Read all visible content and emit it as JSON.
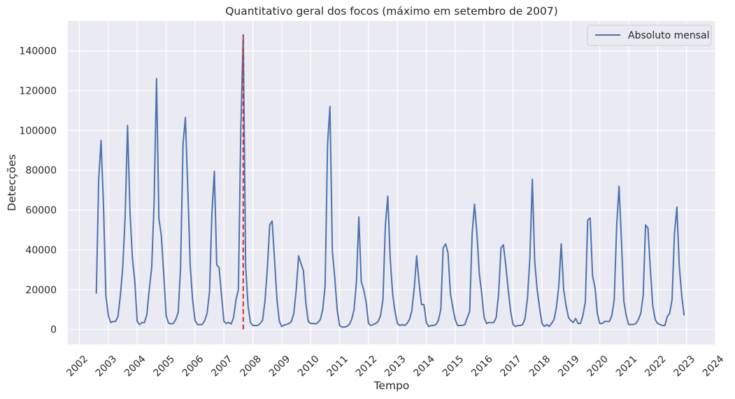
{
  "chart_data": {
    "type": "line",
    "title": "Quantitativo geral dos focos (máximo em setembro de 2007)",
    "xlabel": "Tempo",
    "ylabel": "Detecções",
    "xlim": [
      2001.6,
      2024.0
    ],
    "ylim": [
      -7500,
      155000
    ],
    "x_ticks": [
      "2002",
      "2003",
      "2004",
      "2005",
      "2006",
      "2007",
      "2008",
      "2009",
      "2010",
      "2011",
      "2012",
      "2013",
      "2014",
      "2015",
      "2016",
      "2017",
      "2018",
      "2019",
      "2020",
      "2021",
      "2022",
      "2023",
      "2024"
    ],
    "y_ticks": [
      0,
      20000,
      40000,
      60000,
      80000,
      100000,
      120000,
      140000
    ],
    "grid": true,
    "legend_position": "top-right",
    "colors": {
      "line": "#4c72b0",
      "marker": "#d62728",
      "background": "#eaeaf2",
      "grid": "#ffffff"
    },
    "series": [
      {
        "name": "Absoluto mensal",
        "points": [
          [
            "2002-08",
            18000
          ],
          [
            "2002-09",
            75000
          ],
          [
            "2002-10",
            95000
          ],
          [
            "2002-11",
            62000
          ],
          [
            "2002-12",
            17000
          ],
          [
            "2003-01",
            7000
          ],
          [
            "2003-02",
            3500
          ],
          [
            "2003-03",
            4000
          ],
          [
            "2003-04",
            4000
          ],
          [
            "2003-05",
            6500
          ],
          [
            "2003-06",
            17000
          ],
          [
            "2003-07",
            31000
          ],
          [
            "2003-08",
            57000
          ],
          [
            "2003-09",
            102500
          ],
          [
            "2003-10",
            59000
          ],
          [
            "2003-11",
            36000
          ],
          [
            "2003-12",
            24000
          ],
          [
            "2004-01",
            4000
          ],
          [
            "2004-02",
            2500
          ],
          [
            "2004-03",
            3500
          ],
          [
            "2004-04",
            3500
          ],
          [
            "2004-05",
            7500
          ],
          [
            "2004-06",
            20000
          ],
          [
            "2004-07",
            31000
          ],
          [
            "2004-08",
            63000
          ],
          [
            "2004-09",
            126000
          ],
          [
            "2004-10",
            56000
          ],
          [
            "2004-11",
            47000
          ],
          [
            "2004-12",
            28000
          ],
          [
            "2005-01",
            7000
          ],
          [
            "2005-02",
            3200
          ],
          [
            "2005-03",
            2800
          ],
          [
            "2005-04",
            3000
          ],
          [
            "2005-05",
            5000
          ],
          [
            "2005-06",
            8500
          ],
          [
            "2005-07",
            31000
          ],
          [
            "2005-08",
            93000
          ],
          [
            "2005-09",
            106500
          ],
          [
            "2005-10",
            70000
          ],
          [
            "2005-11",
            32000
          ],
          [
            "2005-12",
            15000
          ],
          [
            "2006-01",
            4500
          ],
          [
            "2006-02",
            2500
          ],
          [
            "2006-03",
            2500
          ],
          [
            "2006-04",
            2500
          ],
          [
            "2006-05",
            4500
          ],
          [
            "2006-06",
            8000
          ],
          [
            "2006-07",
            19000
          ],
          [
            "2006-08",
            58000
          ],
          [
            "2006-09",
            79500
          ],
          [
            "2006-10",
            32500
          ],
          [
            "2006-11",
            31000
          ],
          [
            "2006-12",
            17000
          ],
          [
            "2007-01",
            4000
          ],
          [
            "2007-02",
            3000
          ],
          [
            "2007-03",
            3500
          ],
          [
            "2007-04",
            2800
          ],
          [
            "2007-05",
            6000
          ],
          [
            "2007-06",
            15000
          ],
          [
            "2007-07",
            20000
          ],
          [
            "2007-08",
            100000
          ],
          [
            "2007-09",
            148000
          ],
          [
            "2007-10",
            32000
          ],
          [
            "2007-11",
            12000
          ],
          [
            "2007-12",
            3500
          ],
          [
            "2008-01",
            2000
          ],
          [
            "2008-02",
            2000
          ],
          [
            "2008-03",
            2000
          ],
          [
            "2008-04",
            3000
          ],
          [
            "2008-05",
            4500
          ],
          [
            "2008-06",
            14000
          ],
          [
            "2008-07",
            30000
          ],
          [
            "2008-08",
            52500
          ],
          [
            "2008-09",
            54500
          ],
          [
            "2008-10",
            35000
          ],
          [
            "2008-11",
            15000
          ],
          [
            "2008-12",
            4000
          ],
          [
            "2009-01",
            1500
          ],
          [
            "2009-02",
            2200
          ],
          [
            "2009-03",
            2500
          ],
          [
            "2009-04",
            3000
          ],
          [
            "2009-05",
            4000
          ],
          [
            "2009-06",
            8000
          ],
          [
            "2009-07",
            20000
          ],
          [
            "2009-08",
            37000
          ],
          [
            "2009-09",
            33000
          ],
          [
            "2009-10",
            29500
          ],
          [
            "2009-11",
            13000
          ],
          [
            "2009-12",
            4000
          ],
          [
            "2010-01",
            3000
          ],
          [
            "2010-02",
            3000
          ],
          [
            "2010-03",
            2800
          ],
          [
            "2010-04",
            3500
          ],
          [
            "2010-05",
            5000
          ],
          [
            "2010-06",
            10000
          ],
          [
            "2010-07",
            22000
          ],
          [
            "2010-08",
            93000
          ],
          [
            "2010-09",
            112000
          ],
          [
            "2010-10",
            39000
          ],
          [
            "2010-11",
            26000
          ],
          [
            "2010-12",
            10000
          ],
          [
            "2011-01",
            2000
          ],
          [
            "2011-02",
            1200
          ],
          [
            "2011-03",
            1200
          ],
          [
            "2011-04",
            1500
          ],
          [
            "2011-05",
            2500
          ],
          [
            "2011-06",
            5000
          ],
          [
            "2011-07",
            10000
          ],
          [
            "2011-08",
            24000
          ],
          [
            "2011-09",
            56500
          ],
          [
            "2011-10",
            24000
          ],
          [
            "2011-11",
            20000
          ],
          [
            "2011-12",
            14000
          ],
          [
            "2012-01",
            3000
          ],
          [
            "2012-02",
            2000
          ],
          [
            "2012-03",
            2500
          ],
          [
            "2012-04",
            3000
          ],
          [
            "2012-05",
            4000
          ],
          [
            "2012-06",
            7000
          ],
          [
            "2012-07",
            15000
          ],
          [
            "2012-08",
            52000
          ],
          [
            "2012-09",
            67000
          ],
          [
            "2012-10",
            36000
          ],
          [
            "2012-11",
            18000
          ],
          [
            "2012-12",
            9000
          ],
          [
            "2013-01",
            3000
          ],
          [
            "2013-02",
            2000
          ],
          [
            "2013-03",
            2500
          ],
          [
            "2013-04",
            2000
          ],
          [
            "2013-05",
            3000
          ],
          [
            "2013-06",
            5000
          ],
          [
            "2013-07",
            9500
          ],
          [
            "2013-08",
            21000
          ],
          [
            "2013-09",
            37000
          ],
          [
            "2013-10",
            23000
          ],
          [
            "2013-11",
            12500
          ],
          [
            "2013-12",
            12500
          ],
          [
            "2014-01",
            3500
          ],
          [
            "2014-02",
            1500
          ],
          [
            "2014-03",
            2000
          ],
          [
            "2014-04",
            2000
          ],
          [
            "2014-05",
            2500
          ],
          [
            "2014-06",
            4500
          ],
          [
            "2014-07",
            10000
          ],
          [
            "2014-08",
            41000
          ],
          [
            "2014-09",
            43000
          ],
          [
            "2014-10",
            38500
          ],
          [
            "2014-11",
            18000
          ],
          [
            "2014-12",
            11000
          ],
          [
            "2015-01",
            5000
          ],
          [
            "2015-02",
            2000
          ],
          [
            "2015-03",
            2000
          ],
          [
            "2015-04",
            2000
          ],
          [
            "2015-05",
            2500
          ],
          [
            "2015-06",
            6000
          ],
          [
            "2015-07",
            9000
          ],
          [
            "2015-08",
            48000
          ],
          [
            "2015-09",
            63000
          ],
          [
            "2015-10",
            48000
          ],
          [
            "2015-11",
            28000
          ],
          [
            "2015-12",
            18000
          ],
          [
            "2016-01",
            6000
          ],
          [
            "2016-02",
            3000
          ],
          [
            "2016-03",
            3500
          ],
          [
            "2016-04",
            3500
          ],
          [
            "2016-05",
            3500
          ],
          [
            "2016-06",
            6000
          ],
          [
            "2016-07",
            18000
          ],
          [
            "2016-08",
            41000
          ],
          [
            "2016-09",
            42500
          ],
          [
            "2016-10",
            32000
          ],
          [
            "2016-11",
            20000
          ],
          [
            "2016-12",
            9000
          ],
          [
            "2017-01",
            2500
          ],
          [
            "2017-02",
            1500
          ],
          [
            "2017-03",
            2000
          ],
          [
            "2017-04",
            2000
          ],
          [
            "2017-05",
            2500
          ],
          [
            "2017-06",
            5500
          ],
          [
            "2017-07",
            16000
          ],
          [
            "2017-08",
            36000
          ],
          [
            "2017-09",
            75500
          ],
          [
            "2017-10",
            34000
          ],
          [
            "2017-11",
            20000
          ],
          [
            "2017-12",
            11000
          ],
          [
            "2018-01",
            3000
          ],
          [
            "2018-02",
            1500
          ],
          [
            "2018-03",
            2500
          ],
          [
            "2018-04",
            1500
          ],
          [
            "2018-05",
            3000
          ],
          [
            "2018-06",
            5000
          ],
          [
            "2018-07",
            11000
          ],
          [
            "2018-08",
            22000
          ],
          [
            "2018-09",
            43000
          ],
          [
            "2018-10",
            20000
          ],
          [
            "2018-11",
            12000
          ],
          [
            "2018-12",
            6000
          ],
          [
            "2019-01",
            4500
          ],
          [
            "2019-02",
            3500
          ],
          [
            "2019-03",
            5500
          ],
          [
            "2019-04",
            3000
          ],
          [
            "2019-05",
            3000
          ],
          [
            "2019-06",
            7000
          ],
          [
            "2019-07",
            14000
          ],
          [
            "2019-08",
            55000
          ],
          [
            "2019-09",
            56000
          ],
          [
            "2019-10",
            27000
          ],
          [
            "2019-11",
            21000
          ],
          [
            "2019-12",
            8000
          ],
          [
            "2020-01",
            3000
          ],
          [
            "2020-02",
            3000
          ],
          [
            "2020-03",
            4000
          ],
          [
            "2020-04",
            4000
          ],
          [
            "2020-05",
            4000
          ],
          [
            "2020-06",
            7000
          ],
          [
            "2020-07",
            15000
          ],
          [
            "2020-08",
            52000
          ],
          [
            "2020-09",
            72000
          ],
          [
            "2020-10",
            45000
          ],
          [
            "2020-11",
            14000
          ],
          [
            "2020-12",
            7000
          ],
          [
            "2021-01",
            2500
          ],
          [
            "2021-02",
            2500
          ],
          [
            "2021-03",
            2500
          ],
          [
            "2021-04",
            3000
          ],
          [
            "2021-05",
            5000
          ],
          [
            "2021-06",
            8000
          ],
          [
            "2021-07",
            17000
          ],
          [
            "2021-08",
            52500
          ],
          [
            "2021-09",
            51000
          ],
          [
            "2021-10",
            30000
          ],
          [
            "2021-11",
            12000
          ],
          [
            "2021-12",
            5000
          ],
          [
            "2022-01",
            3000
          ],
          [
            "2022-02",
            2500
          ],
          [
            "2022-03",
            2000
          ],
          [
            "2022-04",
            2000
          ],
          [
            "2022-05",
            6500
          ],
          [
            "2022-06",
            8000
          ],
          [
            "2022-07",
            15000
          ],
          [
            "2022-08",
            48000
          ],
          [
            "2022-09",
            61500
          ],
          [
            "2022-10",
            32000
          ],
          [
            "2022-11",
            17000
          ],
          [
            "2022-12",
            7000
          ]
        ]
      }
    ],
    "annotations": [
      {
        "type": "vline",
        "x": "2007-09",
        "y_range": [
          0,
          148000
        ],
        "style": "dashed",
        "color": "#d62728"
      }
    ]
  }
}
